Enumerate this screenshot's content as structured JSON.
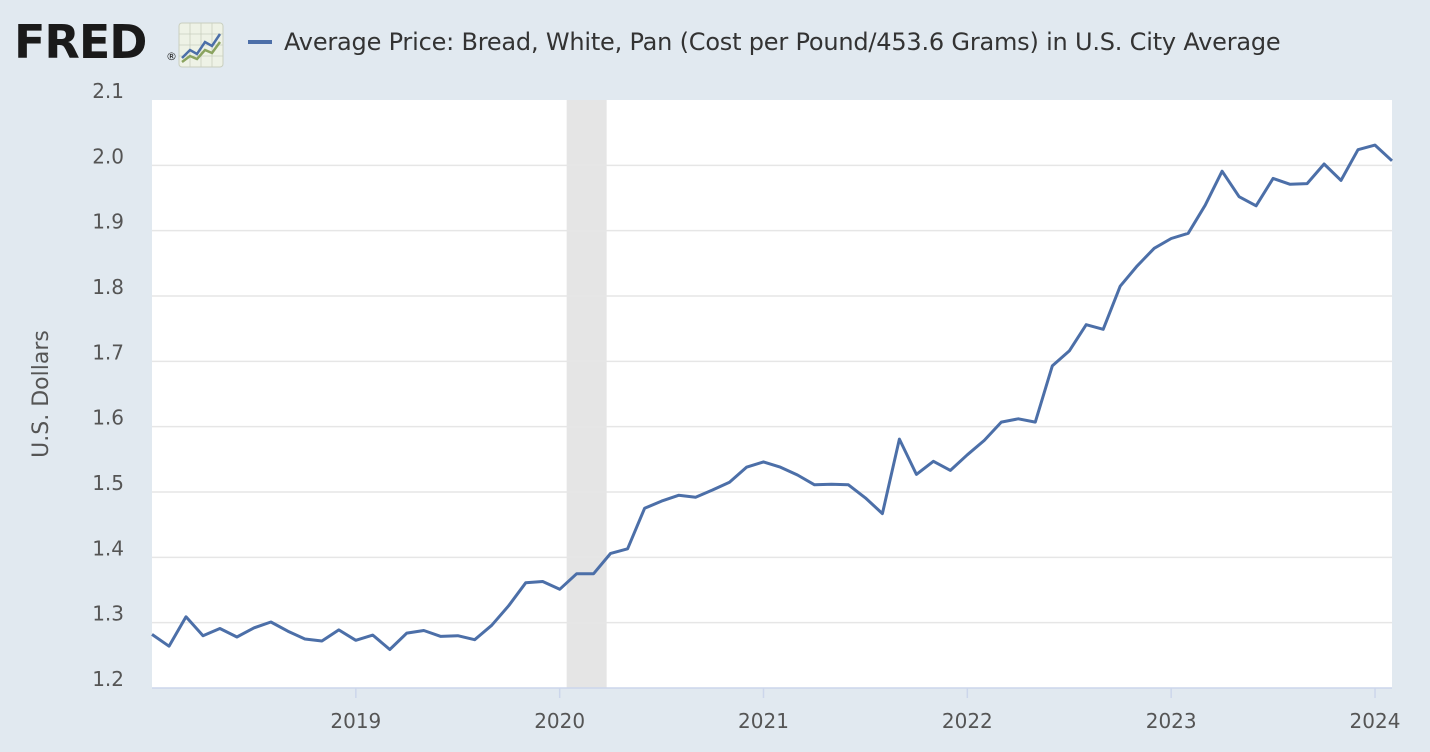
{
  "header": {
    "logo_text": "FRED",
    "logo_registered": "®",
    "logo_icon": "line-chart-icon"
  },
  "colors": {
    "background": "#e1e9f0",
    "plot_background": "#ffffff",
    "series": "#4c6fa8",
    "recession_band": "#e5e5e5",
    "grid": "#e6e6e6"
  },
  "chart_data": {
    "type": "line",
    "title": "Average Price: Bread, White, Pan (Cost per Pound/453.6 Grams) in U.S. City Average",
    "ylabel": "U.S. Dollars",
    "xlabel": "",
    "ylim": [
      1.2,
      2.1
    ],
    "yticks": [
      1.2,
      1.3,
      1.4,
      1.5,
      1.6,
      1.7,
      1.8,
      1.9,
      2.0,
      2.1
    ],
    "ytick_labels": [
      "1.2",
      "1.3",
      "1.4",
      "1.5",
      "1.6",
      "1.7",
      "1.8",
      "1.9",
      "2.0",
      "2.1"
    ],
    "xlim": [
      "2018-01",
      "2024-02"
    ],
    "xtick_labels": [
      "2019",
      "2020",
      "2021",
      "2022",
      "2023",
      "2024"
    ],
    "xticks": [
      "2019-01",
      "2020-01",
      "2021-01",
      "2022-01",
      "2023-01",
      "2024-01"
    ],
    "grid": true,
    "recession": {
      "start": "2020-02",
      "end": "2020-04"
    },
    "series": [
      {
        "name": "Average Price: Bread, White, Pan (Cost per Pound/453.6 Grams) in U.S. City Average",
        "x": [
          "2018-01",
          "2018-02",
          "2018-03",
          "2018-04",
          "2018-05",
          "2018-06",
          "2018-07",
          "2018-08",
          "2018-09",
          "2018-10",
          "2018-11",
          "2018-12",
          "2019-01",
          "2019-02",
          "2019-03",
          "2019-04",
          "2019-05",
          "2019-06",
          "2019-07",
          "2019-08",
          "2019-09",
          "2019-10",
          "2019-11",
          "2019-12",
          "2020-01",
          "2020-02",
          "2020-03",
          "2020-04",
          "2020-05",
          "2020-06",
          "2020-07",
          "2020-08",
          "2020-09",
          "2020-10",
          "2020-11",
          "2020-12",
          "2021-01",
          "2021-02",
          "2021-03",
          "2021-04",
          "2021-05",
          "2021-06",
          "2021-07",
          "2021-08",
          "2021-09",
          "2021-10",
          "2021-11",
          "2021-12",
          "2022-01",
          "2022-02",
          "2022-03",
          "2022-04",
          "2022-05",
          "2022-06",
          "2022-07",
          "2022-08",
          "2022-09",
          "2022-10",
          "2022-11",
          "2022-12",
          "2023-01",
          "2023-02",
          "2023-03",
          "2023-04",
          "2023-05",
          "2023-06",
          "2023-07",
          "2023-08",
          "2023-09",
          "2023-10",
          "2023-11",
          "2023-12",
          "2024-01",
          "2024-02"
        ],
        "values": [
          1.282,
          1.264,
          1.309,
          1.28,
          1.291,
          1.278,
          1.292,
          1.301,
          1.287,
          1.275,
          1.272,
          1.289,
          1.273,
          1.281,
          1.259,
          1.284,
          1.288,
          1.279,
          1.28,
          1.274,
          1.296,
          1.326,
          1.361,
          1.363,
          1.351,
          1.375,
          1.375,
          1.406,
          1.413,
          1.475,
          1.486,
          1.495,
          1.492,
          1.503,
          1.515,
          1.538,
          1.546,
          1.538,
          1.526,
          1.511,
          1.512,
          1.511,
          1.491,
          1.467,
          1.581,
          1.527,
          1.547,
          1.533,
          1.557,
          1.579,
          1.607,
          1.612,
          1.607,
          1.693,
          1.716,
          1.756,
          1.749,
          1.815,
          1.846,
          1.873,
          1.888,
          1.896,
          1.939,
          1.991,
          1.952,
          1.938,
          1.98,
          1.971,
          1.972,
          2.002,
          1.977,
          2.024,
          2.031,
          2.007
        ]
      }
    ]
  }
}
